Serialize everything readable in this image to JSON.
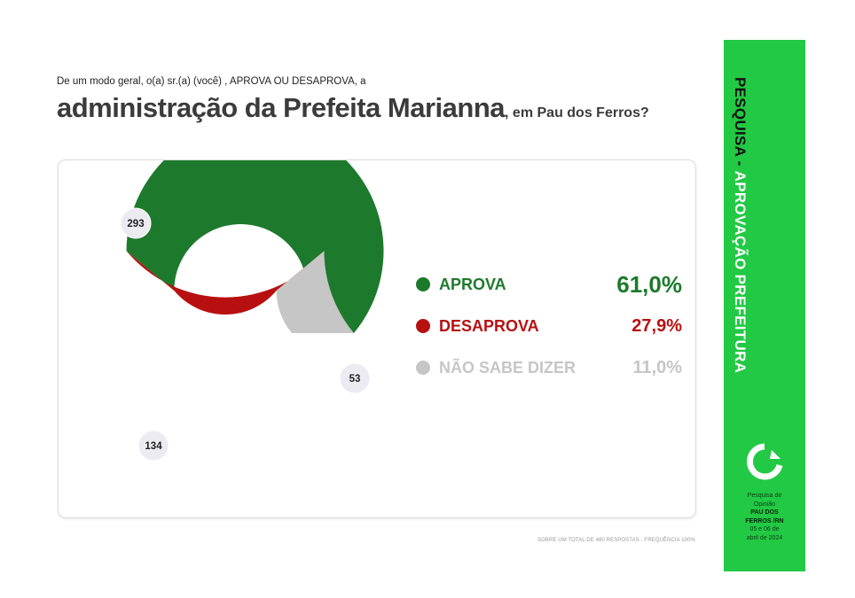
{
  "header": {
    "question": "De um modo geral, o(a) sr.(a) (você) , APROVA OU DESAPROVA, a",
    "headline_main": "administração da Prefeita Marianna",
    "headline_tail": ", em Pau dos Ferros?"
  },
  "legend": [
    {
      "label": "APROVA",
      "pct": "61,0%",
      "color": "#1d7a2c",
      "pct_color": "#1d7a2c"
    },
    {
      "label": "DESAPROVA",
      "pct": "27,9%",
      "color": "#b81010",
      "pct_color": "#b81010"
    },
    {
      "label": "NÃO SABE DIZER",
      "pct": "11,0%",
      "color": "#c6c6c6",
      "pct_color": "#c6c6c6"
    }
  ],
  "chart_data": {
    "type": "pie",
    "title": "",
    "categories": [
      "APROVA",
      "DESAPROVA",
      "NÃO SABE DIZER"
    ],
    "values": [
      293,
      134,
      53
    ],
    "percentages": [
      61.0,
      27.9,
      11.0
    ],
    "colors": [
      "#1d7a2c",
      "#b81010",
      "#c6c6c6"
    ],
    "data_labels": [
      "293",
      "134",
      "53"
    ],
    "donut": true,
    "legend": "right"
  },
  "footnote": "SOBRE UM TOTAL DE 480 RESPOSTAS - FREQUÊNCIA 100%",
  "sidebar": {
    "title_dark": "PESQUISA - ",
    "title_light": "APROVAÇÃO PREFEITURA",
    "info_line1": "Pesquisa de",
    "info_line2": "Opinião",
    "info_bold1": "PAU DOS",
    "info_bold2": "FERROS /RN",
    "info_date1": "05 e 06 de",
    "info_date2": "abril de 2024"
  }
}
